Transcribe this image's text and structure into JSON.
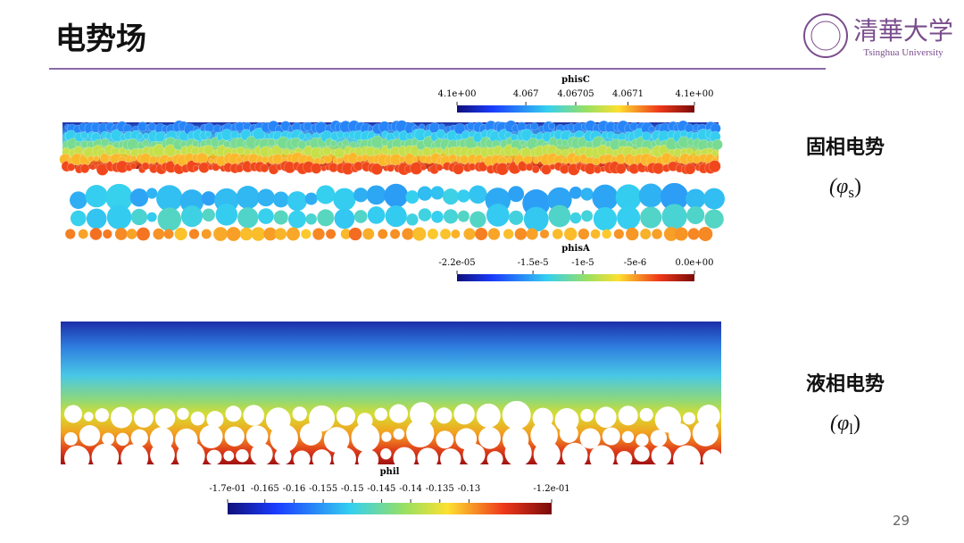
{
  "header": {
    "title": "电势场",
    "logo": {
      "name": "清華大学",
      "subtitle": "Tsinghua University"
    }
  },
  "colorbars": [
    {
      "title": "phisC",
      "labels": [
        "4.1e+00",
        "4.067",
        "4.06705",
        "4.0671",
        "4.1e+00"
      ]
    },
    {
      "title": "phisA",
      "labels": [
        "-2.2e-05",
        "-1.5e-5",
        "-1e-5",
        "-5e-6",
        "0.0e+00"
      ]
    },
    {
      "title": "phil",
      "labels": [
        "-1.7e-01",
        "-0.165",
        "-0.16",
        "-0.155",
        "-0.15",
        "-0.145",
        "-0.14",
        "-0.135",
        "-0.13",
        "-1.2e-01"
      ]
    }
  ],
  "side_labels": [
    {
      "label": "固相电势",
      "open": "(φ",
      "subscript": "s",
      "close": ")"
    },
    {
      "label": "液相电势",
      "open": "(φ",
      "subscript": "l",
      "close": ")"
    }
  ],
  "page_number": "29"
}
